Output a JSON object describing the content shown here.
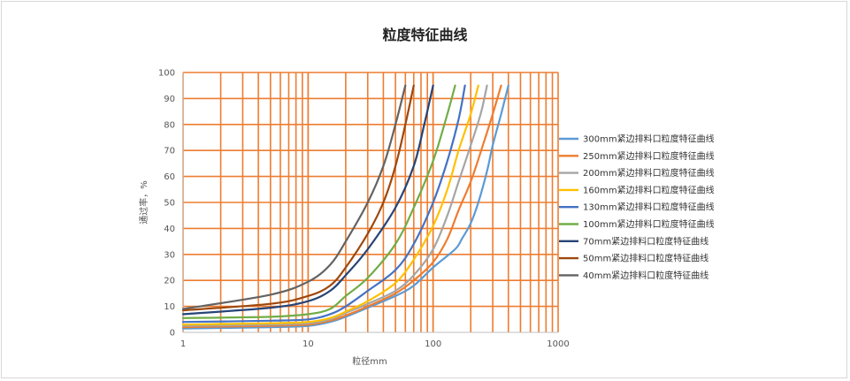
{
  "chart_data": {
    "type": "line",
    "title": "粒度特征曲线",
    "xlabel": "粒径mm",
    "ylabel": "通过率，%",
    "x_scale": "log",
    "xlim": [
      1,
      1000
    ],
    "ylim": [
      0,
      100
    ],
    "x_ticks": [
      "1",
      "10",
      "100",
      "1000"
    ],
    "y_ticks": [
      "0",
      "10",
      "20",
      "30",
      "40",
      "50",
      "60",
      "70",
      "80",
      "90",
      "100"
    ],
    "grid": true,
    "grid_color": "#ED7D31",
    "legend_position": "right",
    "series": [
      {
        "name": "300mm紧边排料口粒度特征曲线",
        "color": "#5B9BD5",
        "points": [
          [
            1,
            1.5
          ],
          [
            5,
            2
          ],
          [
            10,
            2.5
          ],
          [
            15,
            4
          ],
          [
            20,
            6
          ],
          [
            30,
            9.5
          ],
          [
            50,
            14
          ],
          [
            70,
            18
          ],
          [
            100,
            25
          ],
          [
            150,
            32
          ],
          [
            170,
            36
          ],
          [
            200,
            42
          ],
          [
            230,
            50
          ],
          [
            270,
            62
          ],
          [
            300,
            72
          ],
          [
            350,
            84
          ],
          [
            400,
            95
          ]
        ]
      },
      {
        "name": "250mm紧边排料口粒度特征曲线",
        "color": "#ED7D31",
        "points": [
          [
            1,
            2
          ],
          [
            5,
            2.5
          ],
          [
            10,
            3
          ],
          [
            15,
            4.5
          ],
          [
            20,
            6.5
          ],
          [
            30,
            10
          ],
          [
            50,
            15
          ],
          [
            70,
            20
          ],
          [
            100,
            27
          ],
          [
            130,
            36
          ],
          [
            160,
            47
          ],
          [
            200,
            58
          ],
          [
            250,
            72
          ],
          [
            300,
            84
          ],
          [
            350,
            95
          ]
        ]
      },
      {
        "name": "200mm紧边排料口粒度特征曲线",
        "color": "#A5A5A5",
        "points": [
          [
            1,
            2.5
          ],
          [
            5,
            3
          ],
          [
            10,
            3.5
          ],
          [
            15,
            5
          ],
          [
            20,
            7.5
          ],
          [
            30,
            11
          ],
          [
            50,
            16
          ],
          [
            70,
            22
          ],
          [
            100,
            32
          ],
          [
            130,
            45
          ],
          [
            160,
            58
          ],
          [
            200,
            72
          ],
          [
            240,
            84
          ],
          [
            270,
            95
          ]
        ]
      },
      {
        "name": "160mm紧边排料口粒度特征曲线",
        "color": "#FFC000",
        "points": [
          [
            1,
            3
          ],
          [
            5,
            3.5
          ],
          [
            10,
            4
          ],
          [
            15,
            5.5
          ],
          [
            20,
            8
          ],
          [
            30,
            12
          ],
          [
            50,
            19
          ],
          [
            70,
            28
          ],
          [
            100,
            41
          ],
          [
            130,
            55
          ],
          [
            160,
            70
          ],
          [
            200,
            84
          ],
          [
            230,
            95
          ]
        ]
      },
      {
        "name": "130mm紧边排料口粒度特征曲线",
        "color": "#4472C4",
        "points": [
          [
            1,
            4
          ],
          [
            5,
            4.5
          ],
          [
            10,
            5
          ],
          [
            15,
            7
          ],
          [
            20,
            10
          ],
          [
            30,
            16
          ],
          [
            50,
            24
          ],
          [
            70,
            34
          ],
          [
            100,
            50
          ],
          [
            130,
            66
          ],
          [
            160,
            82
          ],
          [
            180,
            95
          ]
        ]
      },
      {
        "name": "100mm紧边排料口粒度特征曲线",
        "color": "#70AD47",
        "points": [
          [
            1,
            5.5
          ],
          [
            5,
            6
          ],
          [
            10,
            7
          ],
          [
            15,
            9
          ],
          [
            20,
            14
          ],
          [
            30,
            21
          ],
          [
            50,
            34
          ],
          [
            70,
            48
          ],
          [
            100,
            66
          ],
          [
            130,
            84
          ],
          [
            150,
            95
          ]
        ]
      },
      {
        "name": "70mm紧边排料口粒度特征曲线",
        "color": "#264478",
        "points": [
          [
            1,
            7
          ],
          [
            5,
            9.5
          ],
          [
            10,
            12
          ],
          [
            15,
            16
          ],
          [
            20,
            22
          ],
          [
            30,
            32
          ],
          [
            50,
            48
          ],
          [
            70,
            64
          ],
          [
            85,
            80
          ],
          [
            100,
            95
          ]
        ]
      },
      {
        "name": "50mm紧边排料口粒度特征曲线",
        "color": "#9E480E",
        "points": [
          [
            1,
            8.5
          ],
          [
            5,
            11
          ],
          [
            10,
            14
          ],
          [
            15,
            18
          ],
          [
            20,
            25
          ],
          [
            30,
            38
          ],
          [
            40,
            50
          ],
          [
            50,
            64
          ],
          [
            60,
            80
          ],
          [
            70,
            95
          ]
        ]
      },
      {
        "name": "40mm紧边排料口粒度特征曲线",
        "color": "#636363",
        "points": [
          [
            1,
            9
          ],
          [
            5,
            14.5
          ],
          [
            10,
            19.5
          ],
          [
            15,
            26
          ],
          [
            20,
            35
          ],
          [
            30,
            50
          ],
          [
            40,
            64
          ],
          [
            50,
            80
          ],
          [
            60,
            95
          ]
        ]
      }
    ]
  }
}
